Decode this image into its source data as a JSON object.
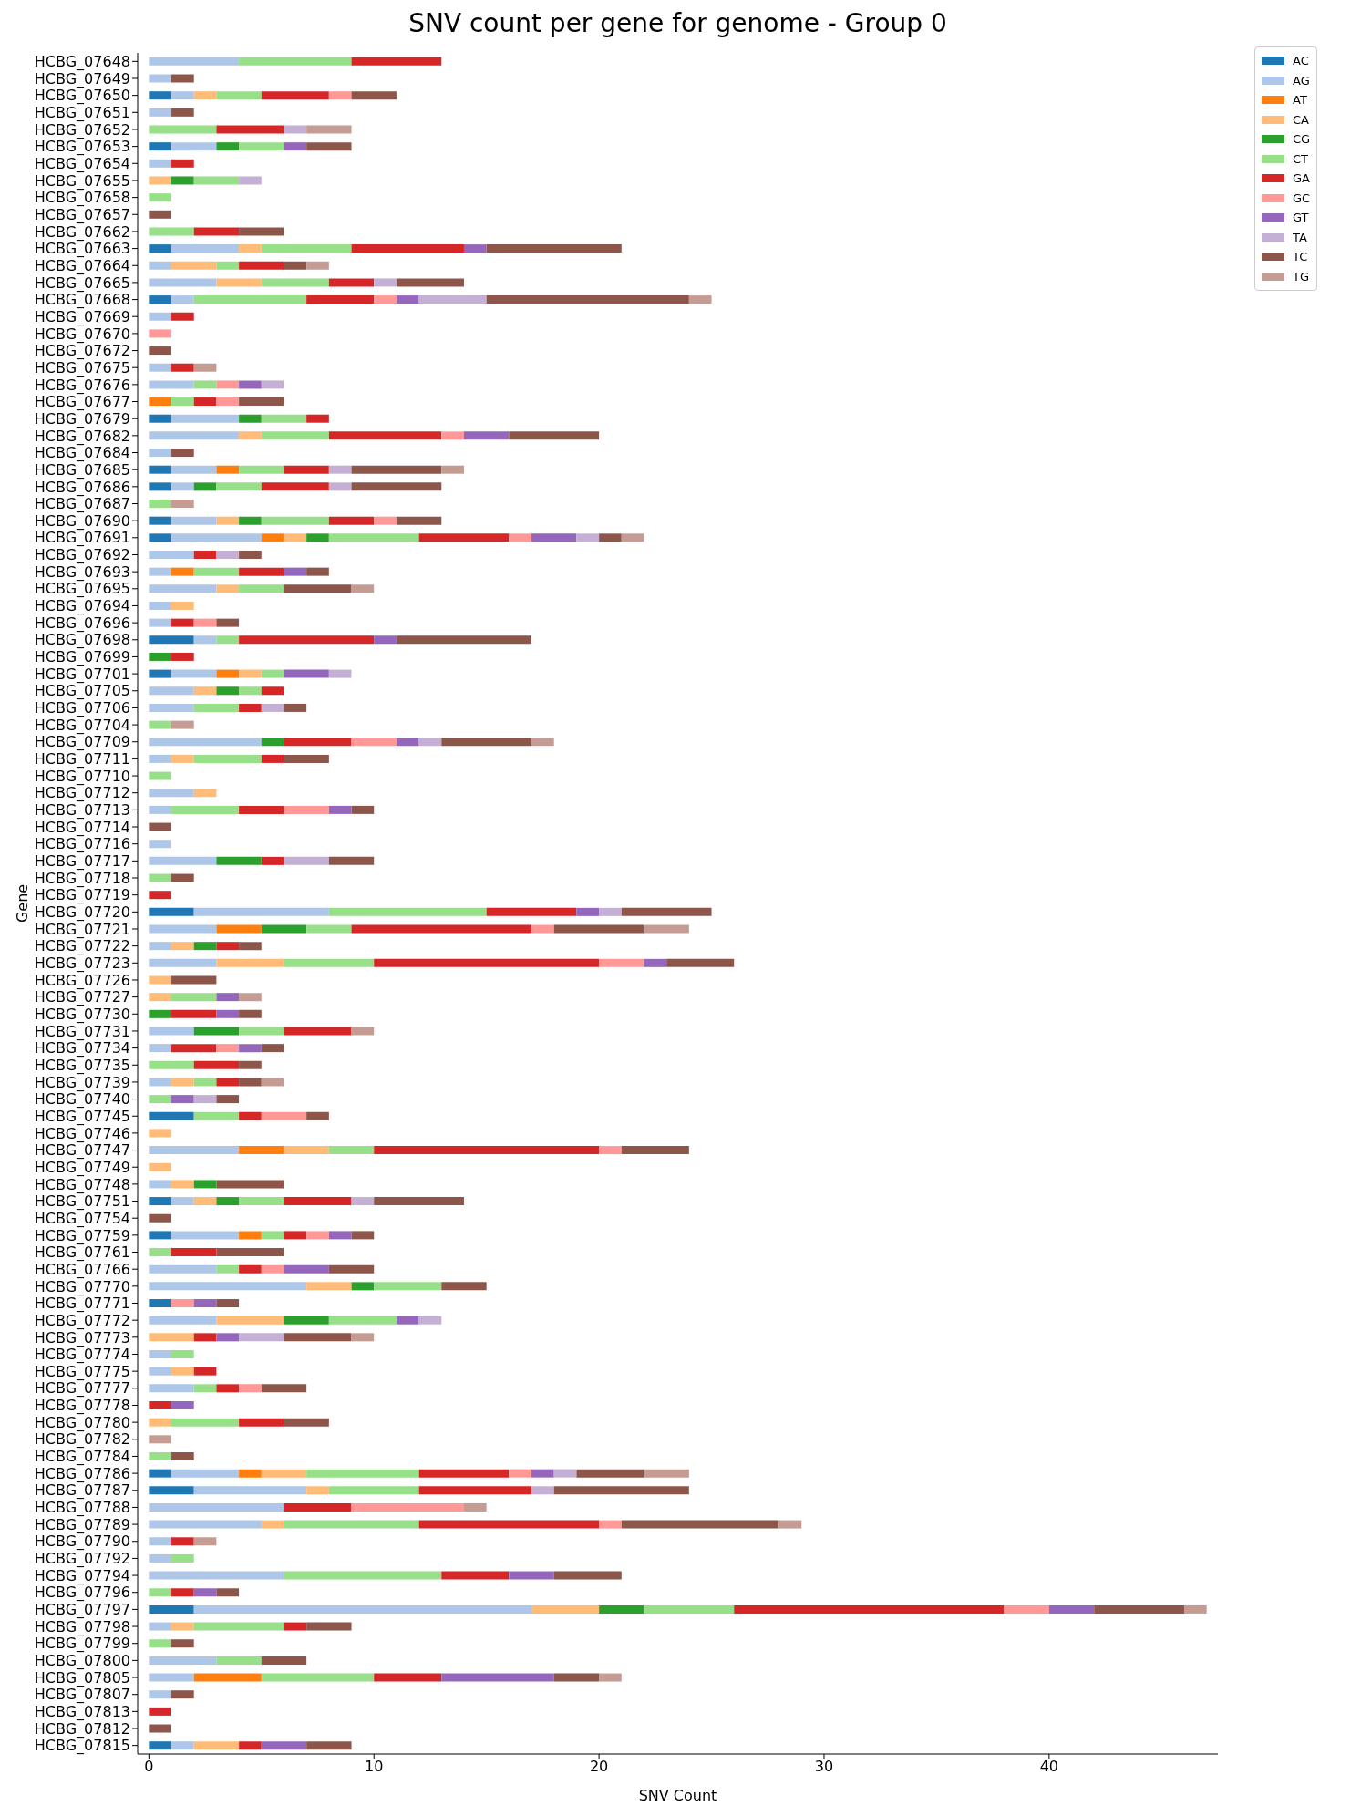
{
  "chart_data": {
    "type": "bar",
    "orientation": "horizontal",
    "stacked": true,
    "title": "SNV count per gene for genome - Group 0",
    "xlabel": "SNV Count",
    "ylabel": "Gene",
    "categories": [
      "HCBG_07648",
      "HCBG_07649",
      "HCBG_07650",
      "HCBG_07651",
      "HCBG_07652",
      "HCBG_07653",
      "HCBG_07654",
      "HCBG_07655",
      "HCBG_07658",
      "HCBG_07657",
      "HCBG_07662",
      "HCBG_07663",
      "HCBG_07664",
      "HCBG_07665",
      "HCBG_07668",
      "HCBG_07669",
      "HCBG_07670",
      "HCBG_07672",
      "HCBG_07675",
      "HCBG_07676",
      "HCBG_07677",
      "HCBG_07679",
      "HCBG_07682",
      "HCBG_07684",
      "HCBG_07685",
      "HCBG_07686",
      "HCBG_07687",
      "HCBG_07690",
      "HCBG_07691",
      "HCBG_07692",
      "HCBG_07693",
      "HCBG_07695",
      "HCBG_07694",
      "HCBG_07696",
      "HCBG_07698",
      "HCBG_07699",
      "HCBG_07701",
      "HCBG_07705",
      "HCBG_07706",
      "HCBG_07704",
      "HCBG_07709",
      "HCBG_07711",
      "HCBG_07710",
      "HCBG_07712",
      "HCBG_07713",
      "HCBG_07714",
      "HCBG_07716",
      "HCBG_07717",
      "HCBG_07718",
      "HCBG_07719",
      "HCBG_07720",
      "HCBG_07721",
      "HCBG_07722",
      "HCBG_07723",
      "HCBG_07726",
      "HCBG_07727",
      "HCBG_07730",
      "HCBG_07731",
      "HCBG_07734",
      "HCBG_07735",
      "HCBG_07739",
      "HCBG_07740",
      "HCBG_07745",
      "HCBG_07746",
      "HCBG_07747",
      "HCBG_07749",
      "HCBG_07748",
      "HCBG_07751",
      "HCBG_07754",
      "HCBG_07759",
      "HCBG_07761",
      "HCBG_07766",
      "HCBG_07770",
      "HCBG_07771",
      "HCBG_07772",
      "HCBG_07773",
      "HCBG_07774",
      "HCBG_07775",
      "HCBG_07777",
      "HCBG_07778",
      "HCBG_07780",
      "HCBG_07782",
      "HCBG_07784",
      "HCBG_07786",
      "HCBG_07787",
      "HCBG_07788",
      "HCBG_07789",
      "HCBG_07790",
      "HCBG_07792",
      "HCBG_07794",
      "HCBG_07796",
      "HCBG_07797",
      "HCBG_07798",
      "HCBG_07799",
      "HCBG_07800",
      "HCBG_07805",
      "HCBG_07807",
      "HCBG_07813",
      "HCBG_07812",
      "HCBG_07815"
    ],
    "series": [
      {
        "name": "AC",
        "color": "#1f77b4",
        "values": [
          0,
          0,
          1,
          0,
          0,
          1,
          0,
          0,
          0,
          0,
          0,
          1,
          0,
          0,
          1,
          0,
          0,
          0,
          0,
          0,
          0,
          1,
          0,
          0,
          1,
          1,
          0,
          1,
          1,
          0,
          0,
          0,
          0,
          0,
          2,
          0,
          1,
          0,
          0,
          0,
          0,
          0,
          0,
          0,
          0,
          0,
          0,
          0,
          0,
          0,
          2,
          0,
          0,
          0,
          0,
          0,
          0,
          0,
          0,
          0,
          0,
          0,
          2,
          0,
          0,
          0,
          0,
          1,
          0,
          1,
          0,
          0,
          0,
          1,
          0,
          0,
          0,
          0,
          0,
          0,
          0,
          0,
          0,
          1,
          2,
          0,
          0,
          0,
          0,
          0,
          0,
          2,
          0,
          0,
          0,
          0,
          0,
          0,
          0,
          1
        ]
      },
      {
        "name": "AG",
        "color": "#aec7e8",
        "values": [
          4,
          1,
          1,
          1,
          0,
          2,
          1,
          0,
          0,
          0,
          0,
          3,
          1,
          3,
          1,
          1,
          0,
          0,
          1,
          2,
          0,
          3,
          4,
          1,
          2,
          1,
          0,
          2,
          4,
          2,
          1,
          3,
          1,
          1,
          1,
          0,
          2,
          2,
          2,
          0,
          5,
          1,
          0,
          2,
          1,
          0,
          1,
          3,
          0,
          0,
          6,
          3,
          1,
          3,
          0,
          0,
          0,
          2,
          1,
          0,
          1,
          0,
          0,
          0,
          4,
          0,
          1,
          1,
          0,
          3,
          0,
          3,
          7,
          0,
          3,
          0,
          1,
          1,
          2,
          0,
          0,
          0,
          0,
          3,
          5,
          6,
          5,
          1,
          1,
          6,
          0,
          15,
          1,
          0,
          3,
          2,
          1,
          0,
          0,
          1
        ]
      },
      {
        "name": "AT",
        "color": "#ff7f0e",
        "values": [
          0,
          0,
          0,
          0,
          0,
          0,
          0,
          0,
          0,
          0,
          0,
          0,
          0,
          0,
          0,
          0,
          0,
          0,
          0,
          0,
          1,
          0,
          0,
          0,
          1,
          0,
          0,
          0,
          1,
          0,
          1,
          0,
          0,
          0,
          0,
          0,
          1,
          0,
          0,
          0,
          0,
          0,
          0,
          0,
          0,
          0,
          0,
          0,
          0,
          0,
          0,
          2,
          0,
          0,
          0,
          0,
          0,
          0,
          0,
          0,
          0,
          0,
          0,
          0,
          2,
          0,
          0,
          0,
          0,
          1,
          0,
          0,
          0,
          0,
          0,
          0,
          0,
          0,
          0,
          0,
          0,
          0,
          0,
          1,
          0,
          0,
          0,
          0,
          0,
          0,
          0,
          0,
          0,
          0,
          0,
          3,
          0,
          0,
          0,
          0
        ]
      },
      {
        "name": "CA",
        "color": "#ffbb78",
        "values": [
          0,
          0,
          1,
          0,
          0,
          0,
          0,
          1,
          0,
          0,
          0,
          1,
          2,
          2,
          0,
          0,
          0,
          0,
          0,
          0,
          0,
          0,
          1,
          0,
          0,
          0,
          0,
          1,
          1,
          0,
          0,
          1,
          1,
          0,
          0,
          0,
          1,
          1,
          0,
          0,
          0,
          1,
          0,
          1,
          0,
          0,
          0,
          0,
          0,
          0,
          0,
          0,
          1,
          3,
          1,
          1,
          0,
          0,
          0,
          0,
          1,
          0,
          0,
          1,
          2,
          1,
          1,
          1,
          0,
          0,
          0,
          0,
          2,
          0,
          3,
          2,
          0,
          1,
          0,
          0,
          1,
          0,
          0,
          2,
          1,
          0,
          1,
          0,
          0,
          0,
          0,
          3,
          1,
          0,
          0,
          0,
          0,
          0,
          0,
          2
        ]
      },
      {
        "name": "CG",
        "color": "#2ca02c",
        "values": [
          0,
          0,
          0,
          0,
          0,
          1,
          0,
          1,
          0,
          0,
          0,
          0,
          0,
          0,
          0,
          0,
          0,
          0,
          0,
          0,
          0,
          1,
          0,
          0,
          0,
          1,
          0,
          1,
          1,
          0,
          0,
          0,
          0,
          0,
          0,
          1,
          0,
          1,
          0,
          0,
          1,
          0,
          0,
          0,
          0,
          0,
          0,
          2,
          0,
          0,
          0,
          2,
          1,
          0,
          0,
          0,
          1,
          2,
          0,
          0,
          0,
          0,
          0,
          0,
          0,
          0,
          1,
          1,
          0,
          0,
          0,
          0,
          1,
          0,
          2,
          0,
          0,
          0,
          0,
          0,
          0,
          0,
          0,
          0,
          0,
          0,
          0,
          0,
          0,
          0,
          0,
          2,
          0,
          0,
          0,
          0,
          0,
          0,
          0,
          0
        ]
      },
      {
        "name": "CT",
        "color": "#98df8a",
        "values": [
          5,
          0,
          2,
          0,
          3,
          2,
          0,
          2,
          1,
          0,
          2,
          4,
          1,
          3,
          5,
          0,
          0,
          0,
          0,
          1,
          1,
          2,
          3,
          0,
          2,
          2,
          1,
          3,
          4,
          0,
          2,
          2,
          0,
          0,
          1,
          0,
          1,
          1,
          2,
          1,
          0,
          3,
          1,
          0,
          3,
          0,
          0,
          0,
          1,
          0,
          7,
          2,
          0,
          4,
          0,
          2,
          0,
          2,
          0,
          2,
          1,
          1,
          2,
          0,
          2,
          0,
          0,
          2,
          0,
          1,
          1,
          1,
          3,
          0,
          3,
          0,
          1,
          0,
          1,
          0,
          3,
          0,
          1,
          5,
          4,
          0,
          6,
          0,
          1,
          7,
          1,
          4,
          4,
          1,
          2,
          5,
          0,
          0,
          0,
          0
        ]
      },
      {
        "name": "GA",
        "color": "#d62728",
        "values": [
          4,
          0,
          3,
          0,
          3,
          0,
          1,
          0,
          0,
          0,
          2,
          5,
          2,
          2,
          3,
          1,
          0,
          0,
          1,
          0,
          1,
          1,
          5,
          0,
          2,
          3,
          0,
          2,
          4,
          1,
          2,
          0,
          0,
          1,
          6,
          1,
          0,
          1,
          1,
          0,
          3,
          1,
          0,
          0,
          2,
          0,
          0,
          1,
          0,
          1,
          4,
          8,
          1,
          10,
          0,
          0,
          2,
          3,
          2,
          2,
          1,
          0,
          1,
          0,
          10,
          0,
          0,
          3,
          0,
          1,
          2,
          1,
          0,
          0,
          0,
          1,
          0,
          1,
          1,
          1,
          2,
          0,
          0,
          4,
          5,
          3,
          8,
          1,
          0,
          3,
          1,
          12,
          1,
          0,
          0,
          3,
          0,
          1,
          0,
          1
        ]
      },
      {
        "name": "GC",
        "color": "#ff9896",
        "values": [
          0,
          0,
          1,
          0,
          0,
          0,
          0,
          0,
          0,
          0,
          0,
          0,
          0,
          0,
          1,
          0,
          1,
          0,
          0,
          1,
          1,
          0,
          1,
          0,
          0,
          0,
          0,
          1,
          1,
          0,
          0,
          0,
          0,
          1,
          0,
          0,
          0,
          0,
          0,
          0,
          2,
          0,
          0,
          0,
          2,
          0,
          0,
          0,
          0,
          0,
          0,
          1,
          0,
          2,
          0,
          0,
          0,
          0,
          1,
          0,
          0,
          0,
          2,
          0,
          1,
          0,
          0,
          0,
          0,
          1,
          0,
          1,
          0,
          1,
          0,
          0,
          0,
          0,
          1,
          0,
          0,
          0,
          0,
          1,
          0,
          5,
          1,
          0,
          0,
          0,
          0,
          2,
          0,
          0,
          0,
          0,
          0,
          0,
          0,
          0
        ]
      },
      {
        "name": "GT",
        "color": "#9467bd",
        "values": [
          0,
          0,
          0,
          0,
          0,
          1,
          0,
          0,
          0,
          0,
          0,
          1,
          0,
          0,
          1,
          0,
          0,
          0,
          0,
          1,
          0,
          0,
          2,
          0,
          0,
          0,
          0,
          0,
          2,
          0,
          1,
          0,
          0,
          0,
          1,
          0,
          2,
          0,
          0,
          0,
          1,
          0,
          0,
          0,
          1,
          0,
          0,
          0,
          0,
          0,
          1,
          0,
          0,
          1,
          0,
          1,
          1,
          0,
          1,
          0,
          0,
          1,
          0,
          0,
          0,
          0,
          0,
          0,
          0,
          1,
          0,
          2,
          0,
          1,
          1,
          1,
          0,
          0,
          0,
          1,
          0,
          0,
          0,
          1,
          0,
          0,
          0,
          0,
          0,
          2,
          1,
          2,
          0,
          0,
          0,
          5,
          0,
          0,
          0,
          2
        ]
      },
      {
        "name": "TA",
        "color": "#c5b0d5",
        "values": [
          0,
          0,
          0,
          0,
          1,
          0,
          0,
          1,
          0,
          0,
          0,
          0,
          0,
          1,
          3,
          0,
          0,
          0,
          0,
          1,
          0,
          0,
          0,
          0,
          1,
          1,
          0,
          0,
          1,
          1,
          0,
          0,
          0,
          0,
          0,
          0,
          1,
          0,
          1,
          0,
          1,
          0,
          0,
          0,
          0,
          0,
          0,
          2,
          0,
          0,
          1,
          0,
          0,
          0,
          0,
          0,
          0,
          0,
          0,
          0,
          0,
          1,
          0,
          0,
          0,
          0,
          0,
          1,
          0,
          0,
          0,
          0,
          0,
          0,
          1,
          2,
          0,
          0,
          0,
          0,
          0,
          0,
          0,
          1,
          1,
          0,
          0,
          0,
          0,
          0,
          0,
          0,
          0,
          0,
          0,
          0,
          0,
          0,
          0,
          0
        ]
      },
      {
        "name": "TC",
        "color": "#8c564b",
        "values": [
          0,
          1,
          2,
          1,
          0,
          2,
          0,
          0,
          0,
          1,
          2,
          6,
          1,
          3,
          9,
          0,
          0,
          1,
          0,
          0,
          2,
          0,
          4,
          1,
          4,
          4,
          0,
          2,
          1,
          1,
          1,
          3,
          0,
          1,
          6,
          0,
          0,
          0,
          1,
          0,
          4,
          2,
          0,
          0,
          1,
          1,
          0,
          2,
          1,
          0,
          4,
          4,
          1,
          3,
          2,
          0,
          1,
          0,
          1,
          1,
          1,
          1,
          1,
          0,
          3,
          0,
          3,
          4,
          1,
          1,
          3,
          2,
          2,
          1,
          0,
          3,
          0,
          0,
          2,
          0,
          2,
          0,
          1,
          3,
          6,
          0,
          7,
          0,
          0,
          3,
          1,
          4,
          2,
          1,
          2,
          2,
          1,
          0,
          1,
          2
        ]
      },
      {
        "name": "TG",
        "color": "#c49c94",
        "values": [
          0,
          0,
          0,
          0,
          2,
          0,
          0,
          0,
          0,
          0,
          0,
          0,
          1,
          0,
          1,
          0,
          0,
          0,
          1,
          0,
          0,
          0,
          0,
          0,
          1,
          0,
          1,
          0,
          1,
          0,
          0,
          1,
          0,
          0,
          0,
          0,
          0,
          0,
          0,
          1,
          1,
          0,
          0,
          0,
          0,
          0,
          0,
          0,
          0,
          0,
          0,
          2,
          0,
          0,
          0,
          1,
          0,
          1,
          0,
          0,
          1,
          0,
          0,
          0,
          0,
          0,
          0,
          0,
          0,
          0,
          0,
          0,
          0,
          0,
          0,
          1,
          0,
          0,
          0,
          0,
          0,
          1,
          0,
          2,
          0,
          1,
          1,
          1,
          0,
          0,
          0,
          1,
          0,
          0,
          0,
          1,
          0,
          0,
          0,
          0
        ]
      }
    ],
    "xlim": [
      -0.5,
      47.5
    ],
    "xticks": [
      0,
      10,
      20,
      30,
      40
    ],
    "legend": "top right"
  }
}
